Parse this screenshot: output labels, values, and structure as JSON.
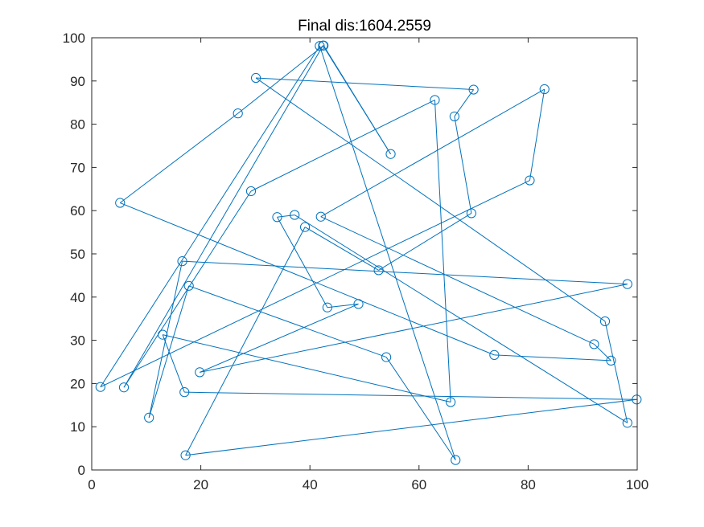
{
  "chart_data": {
    "type": "line",
    "title": "Final dis:1604.2559",
    "xlabel": "",
    "ylabel": "",
    "xlim": [
      0,
      100
    ],
    "ylim": [
      0,
      100
    ],
    "xticks": [
      0,
      20,
      40,
      60,
      80,
      100
    ],
    "yticks": [
      0,
      10,
      20,
      30,
      40,
      50,
      60,
      70,
      80,
      90,
      100
    ],
    "grid": false,
    "box": true,
    "marker": "circle",
    "line_color": "#0072BD",
    "series": [
      {
        "name": "",
        "points": [
          [
            5.2,
            61.8
          ],
          [
            73.8,
            26.6
          ],
          [
            95.2,
            25.3
          ],
          [
            92.1,
            29.1
          ],
          [
            42.0,
            58.6
          ],
          [
            83.0,
            88.1
          ],
          [
            80.3,
            67.0
          ],
          [
            1.6,
            19.2
          ],
          [
            41.8,
            98.1
          ],
          [
            66.7,
            2.3
          ],
          [
            48.9,
            38.4
          ],
          [
            19.8,
            22.6
          ],
          [
            98.2,
            43.0
          ],
          [
            16.6,
            48.3
          ],
          [
            10.5,
            12.1
          ],
          [
            17.8,
            42.6
          ],
          [
            54.0,
            26.1
          ],
          [
            37.2,
            59.0
          ],
          [
            33.8,
            58.5
          ],
          [
            49.0,
            38.3
          ],
          [
            43.2,
            37.6
          ],
          [
            65.8,
            15.7
          ],
          [
            62.9,
            85.6
          ],
          [
            29.2,
            64.5
          ],
          [
            5.9,
            19.1
          ],
          [
            42.4,
            98.2
          ],
          [
            54.8,
            73.1
          ],
          [
            42.5,
            98.2
          ],
          [
            26.8,
            82.5
          ],
          [
            5.1,
            61.8
          ]
        ]
      }
    ],
    "tour": [
      [
        5.2,
        61.8
      ],
      [
        73.8,
        26.6
      ],
      [
        95.2,
        25.3
      ],
      [
        92.1,
        29.1
      ],
      [
        42.0,
        58.6
      ],
      [
        83.0,
        88.1
      ],
      [
        80.3,
        67.0
      ],
      [
        1.6,
        19.2
      ],
      [
        16.6,
        48.3
      ],
      [
        17.2,
        3.4
      ],
      [
        39.1,
        56.2
      ],
      [
        52.6,
        46.2
      ],
      [
        69.6,
        59.4
      ],
      [
        66.5,
        81.8
      ],
      [
        70.0,
        88.0
      ],
      [
        30.1,
        90.7
      ],
      [
        94.1,
        34.4
      ],
      [
        98.2,
        10.9
      ],
      [
        37.2,
        59.0
      ],
      [
        33.8,
        58.5
      ],
      [
        49.0,
        38.3
      ],
      [
        39.8,
        37.0
      ],
      [
        98.2,
        43.0
      ],
      [
        16.6,
        48.3
      ],
      [
        10.5,
        12.1
      ],
      [
        17.8,
        42.6
      ],
      [
        54.0,
        26.1
      ],
      [
        66.7,
        2.3
      ],
      [
        41.8,
        98.1
      ],
      [
        65.8,
        15.7
      ],
      [
        62.9,
        85.6
      ],
      [
        29.2,
        64.5
      ],
      [
        5.9,
        19.1
      ],
      [
        42.4,
        98.2
      ],
      [
        54.8,
        73.1
      ],
      [
        42.5,
        98.2
      ],
      [
        26.8,
        82.5
      ],
      [
        5.2,
        61.8
      ]
    ],
    "route": [
      [
        5.2,
        61.8
      ],
      [
        73.8,
        26.6
      ],
      [
        95.2,
        25.3
      ],
      [
        92.1,
        29.1
      ],
      [
        42.0,
        58.6
      ],
      [
        83.0,
        88.1
      ],
      [
        80.3,
        67.0
      ],
      [
        1.6,
        19.2
      ],
      [
        41.8,
        98.1
      ],
      [
        66.7,
        2.3
      ],
      [
        54.0,
        26.1
      ],
      [
        17.8,
        42.6
      ],
      [
        10.5,
        12.1
      ],
      [
        16.6,
        48.3
      ],
      [
        98.2,
        43.0
      ],
      [
        19.8,
        22.6
      ],
      [
        48.9,
        38.4
      ],
      [
        43.2,
        37.6
      ],
      [
        34.0,
        58.5
      ],
      [
        37.2,
        59.0
      ],
      [
        98.2,
        10.9
      ],
      [
        94.1,
        34.4
      ],
      [
        30.1,
        90.7
      ],
      [
        70.0,
        88.0
      ],
      [
        66.5,
        81.8
      ],
      [
        69.6,
        59.4
      ],
      [
        52.6,
        46.2
      ],
      [
        39.1,
        56.2
      ],
      [
        17.2,
        3.4
      ],
      [
        99.9,
        16.3
      ],
      [
        17.0,
        18.0
      ],
      [
        13.0,
        31.3
      ],
      [
        65.8,
        15.7
      ],
      [
        62.9,
        85.6
      ],
      [
        29.2,
        64.5
      ],
      [
        5.9,
        19.1
      ],
      [
        42.4,
        98.2
      ],
      [
        54.8,
        73.1
      ],
      [
        42.5,
        98.2
      ],
      [
        26.8,
        82.5
      ],
      [
        5.2,
        61.8
      ]
    ]
  }
}
